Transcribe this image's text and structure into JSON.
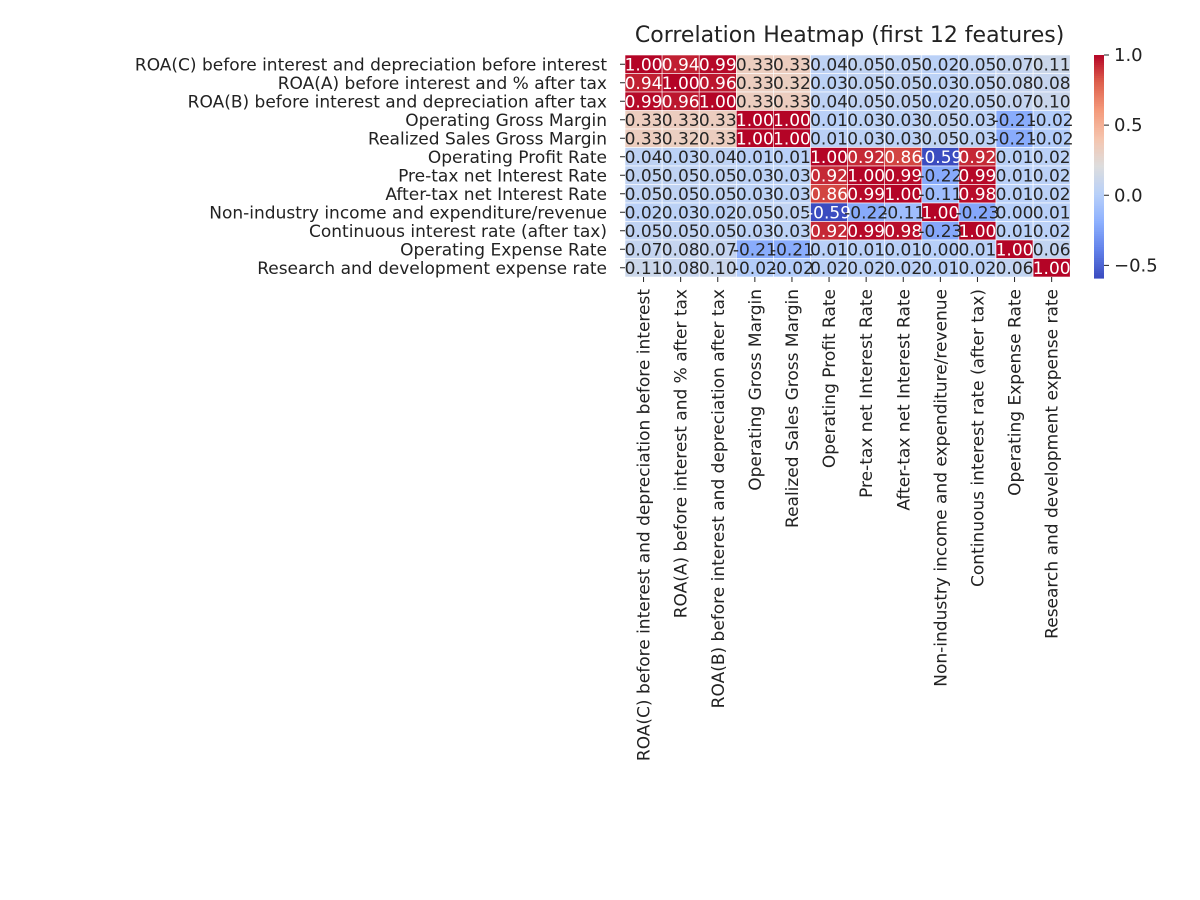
{
  "chart_data": {
    "type": "heatmap",
    "title": "Correlation Heatmap (first 12 features)",
    "xlabel": "",
    "ylabel": "",
    "labels": [
      "ROA(C) before interest and depreciation before interest",
      "ROA(A) before interest and % after tax",
      "ROA(B) before interest and depreciation after tax",
      "Operating Gross Margin",
      "Realized Sales Gross Margin",
      "Operating Profit Rate",
      "Pre-tax net Interest Rate",
      "After-tax net Interest Rate",
      "Non-industry income and expenditure/revenue",
      "Continuous interest rate (after tax)",
      "Operating Expense Rate",
      "Research and development expense rate"
    ],
    "matrix": [
      [
        1.0,
        0.94,
        0.99,
        0.33,
        0.33,
        0.04,
        0.05,
        0.05,
        0.02,
        0.05,
        0.07,
        0.11
      ],
      [
        0.94,
        1.0,
        0.96,
        0.33,
        0.32,
        0.03,
        0.05,
        0.05,
        0.03,
        0.05,
        0.08,
        0.08
      ],
      [
        0.99,
        0.96,
        1.0,
        0.33,
        0.33,
        0.04,
        0.05,
        0.05,
        0.02,
        0.05,
        0.07,
        0.1
      ],
      [
        0.33,
        0.33,
        0.33,
        1.0,
        1.0,
        0.01,
        0.03,
        0.03,
        0.05,
        0.03,
        -0.21,
        -0.02
      ],
      [
        0.33,
        0.32,
        0.33,
        1.0,
        1.0,
        0.01,
        0.03,
        0.03,
        0.05,
        0.03,
        -0.21,
        -0.02
      ],
      [
        0.04,
        0.03,
        0.04,
        0.01,
        0.01,
        1.0,
        0.92,
        0.86,
        -0.59,
        0.92,
        0.01,
        0.02
      ],
      [
        0.05,
        0.05,
        0.05,
        0.03,
        0.03,
        0.92,
        1.0,
        0.99,
        -0.22,
        0.99,
        0.01,
        0.02
      ],
      [
        0.05,
        0.05,
        0.05,
        0.03,
        0.03,
        0.86,
        0.99,
        1.0,
        -0.11,
        0.98,
        0.01,
        0.02
      ],
      [
        0.02,
        0.03,
        0.02,
        0.05,
        0.05,
        -0.59,
        -0.22,
        -0.11,
        1.0,
        -0.23,
        -0.0,
        0.01
      ],
      [
        0.05,
        0.05,
        0.05,
        0.03,
        0.03,
        0.92,
        0.99,
        0.98,
        -0.23,
        1.0,
        0.01,
        0.02
      ],
      [
        0.07,
        0.08,
        0.07,
        -0.21,
        -0.21,
        0.01,
        0.01,
        0.01,
        -0.0,
        0.01,
        1.0,
        0.06
      ],
      [
        0.11,
        0.08,
        0.1,
        -0.02,
        -0.02,
        0.02,
        0.02,
        0.02,
        0.01,
        0.02,
        0.06,
        1.0
      ]
    ],
    "value_range": [
      -0.59,
      1.0
    ],
    "colorbar_ticks": [
      "−0.5",
      "0.0",
      "0.5",
      "1.0"
    ],
    "colorbar_tick_values": [
      -0.5,
      0.0,
      0.5,
      1.0
    ],
    "colormap": "coolwarm",
    "annotated": true,
    "grid": false,
    "colors": {
      "low": "#3b4cc0",
      "mid": "#dddddd",
      "high": "#b40426",
      "cell_border": "#ffffff"
    }
  }
}
